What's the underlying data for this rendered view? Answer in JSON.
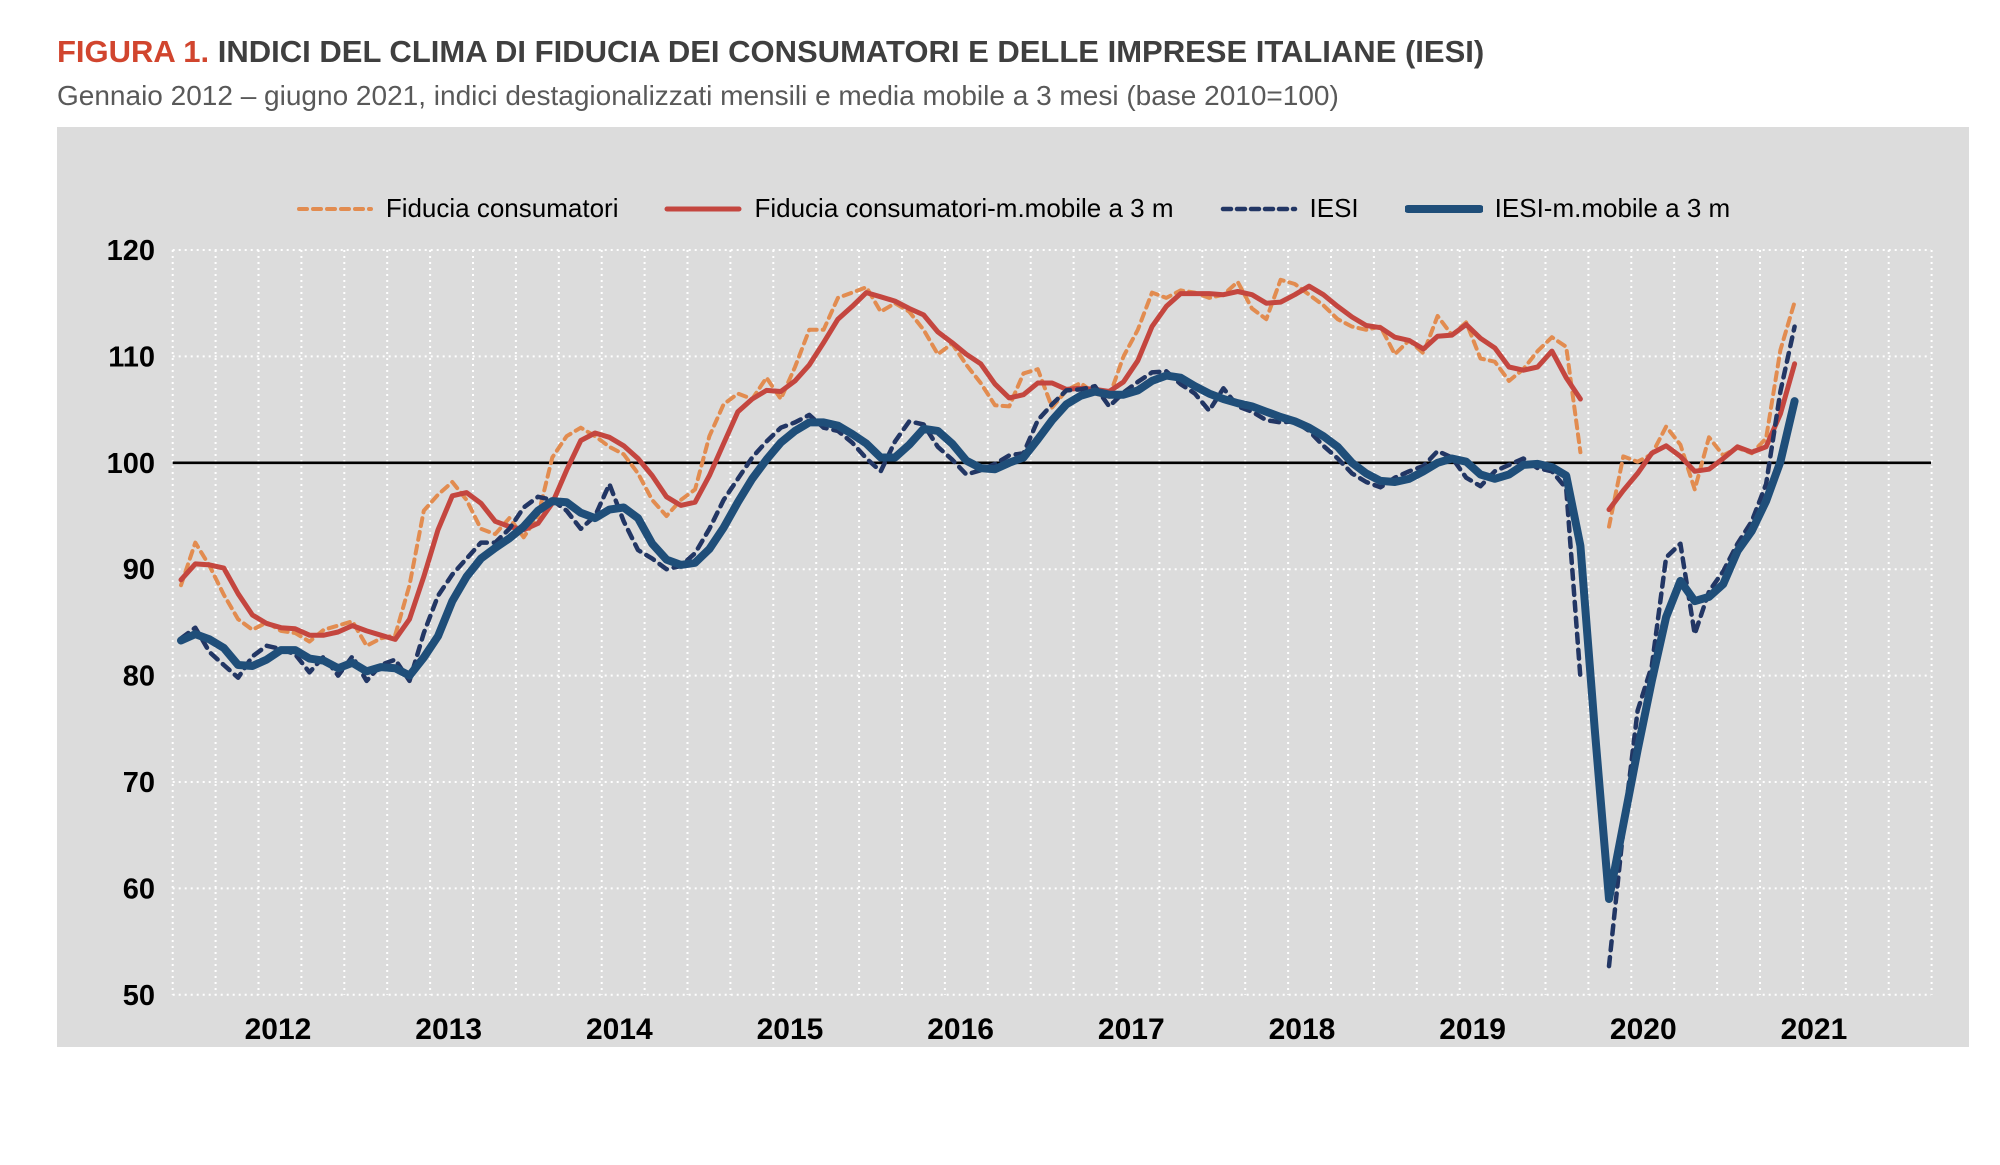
{
  "header": {
    "figure_label": "FIGURA 1.",
    "title": "INDICI DEL CLIMA DI FIDUCIA DEI CONSUMATORI E DELLE IMPRESE ITALIANE (IESI)",
    "subtitle": "Gennaio 2012 – giugno 2021, indici destagionalizzati mensili e media mobile a 3 mesi (base 2010=100)",
    "figure_label_color": "#d1452e",
    "title_color": "#3f3f3f",
    "subtitle_color": "#595959"
  },
  "legend": {
    "items": [
      {
        "label": "Fiducia consumatori",
        "style": "dashed",
        "color": "#e28c50",
        "weight": 4
      },
      {
        "label": "Fiducia consumatori-m.mobile a 3 m",
        "style": "solid",
        "color": "#c4463f",
        "weight": 5
      },
      {
        "label": "IESI",
        "style": "dashed",
        "color": "#223664",
        "weight": 4.5
      },
      {
        "label": "IESI-m.mobile a 3 m",
        "style": "solid",
        "color": "#1f4e79",
        "weight": 8
      }
    ]
  },
  "chart_data": {
    "type": "line",
    "title": "Indici del clima di fiducia dei consumatori e delle imprese italiane (IESI)",
    "x_unit": "month",
    "x_start": "2012-01",
    "x_end": "2021-06",
    "year_labels": [
      "2012",
      "2013",
      "2014",
      "2015",
      "2016",
      "2017",
      "2018",
      "2019",
      "2020",
      "2021"
    ],
    "ylim": [
      50,
      120
    ],
    "yticks": [
      120,
      110,
      100,
      90,
      80,
      70,
      60,
      50
    ],
    "baseline": 100,
    "plot_bg": "#dcdcdc",
    "grid_color": "#ffffff",
    "baseline_color": "#000000",
    "grid": true,
    "legend_position": "top",
    "series": [
      {
        "name": "Fiducia consumatori",
        "color": "#e28c50",
        "dash": "8 6",
        "width": 4,
        "values": [
          88.5,
          92.5,
          90.3,
          87.6,
          85.3,
          84.3,
          85.0,
          84.2,
          84.0,
          83.2,
          84.3,
          84.7,
          85.1,
          82.8,
          83.5,
          83.8,
          88.5,
          95.5,
          97.0,
          98.2,
          96.5,
          93.8,
          93.3,
          94.8,
          93.0,
          95.0,
          100.5,
          102.5,
          103.3,
          102.5,
          101.5,
          100.8,
          99.0,
          96.5,
          95.0,
          96.5,
          97.5,
          102.5,
          105.5,
          106.5,
          106.0,
          108.0,
          106.0,
          109.0,
          112.5,
          112.5,
          115.5,
          116.0,
          116.5,
          114.2,
          115.0,
          114.2,
          112.5,
          110.2,
          111.2,
          109.2,
          107.5,
          105.4,
          105.3,
          108.4,
          108.8,
          105.2,
          106.8,
          107.5,
          106.5,
          106.2,
          110.0,
          112.5,
          116.0,
          115.5,
          116.2,
          116.0,
          115.5,
          115.8,
          117.0,
          114.5,
          113.5,
          117.2,
          116.8,
          115.8,
          114.8,
          113.5,
          112.8,
          112.5,
          112.8,
          110.2,
          111.5,
          110.3,
          113.8,
          112.0,
          113.2,
          109.8,
          109.5,
          107.7,
          108.8,
          110.5,
          111.8,
          110.9,
          101.0,
          null,
          94.0,
          100.6,
          100.1,
          100.8,
          103.4,
          101.7,
          97.5,
          102.4,
          100.7,
          101.4,
          100.9,
          102.3,
          110.6,
          115.1
        ]
      },
      {
        "name": "Fiducia consumatori-m.mobile a 3 m",
        "color": "#c4463f",
        "dash": null,
        "width": 5,
        "values": [
          89.0,
          90.5,
          90.4,
          90.1,
          87.7,
          85.7,
          84.9,
          84.5,
          84.4,
          83.8,
          83.8,
          84.1,
          84.7,
          84.2,
          83.8,
          83.4,
          85.3,
          89.3,
          93.7,
          96.9,
          97.2,
          96.2,
          94.5,
          94.0,
          93.7,
          94.3,
          96.2,
          99.3,
          102.1,
          102.8,
          102.4,
          101.6,
          100.4,
          98.8,
          96.8,
          96.0,
          96.3,
          98.8,
          101.8,
          104.8,
          106.0,
          106.8,
          106.7,
          107.7,
          109.2,
          111.3,
          113.5,
          114.7,
          116.0,
          115.6,
          115.2,
          114.5,
          113.9,
          112.3,
          111.3,
          110.2,
          109.3,
          107.4,
          106.1,
          106.4,
          107.5,
          107.5,
          106.9,
          107.0,
          106.9,
          106.7,
          107.6,
          109.6,
          112.8,
          114.7,
          115.9,
          115.9,
          115.9,
          115.8,
          116.1,
          115.8,
          115.0,
          115.1,
          115.8,
          116.6,
          115.8,
          114.7,
          113.7,
          112.9,
          112.7,
          111.8,
          111.5,
          110.7,
          111.9,
          112.0,
          113.0,
          111.7,
          110.8,
          109.0,
          108.7,
          109.0,
          110.5,
          108.0,
          106.0,
          null,
          95.6,
          97.4,
          99.0,
          100.9,
          101.6,
          100.6,
          99.2,
          99.4,
          100.4,
          101.5,
          101.0,
          101.5,
          104.6,
          109.3
        ]
      },
      {
        "name": "IESI",
        "color": "#223664",
        "dash": "9 7",
        "width": 4.5,
        "values": [
          83.5,
          84.5,
          82.2,
          81.0,
          79.8,
          81.8,
          82.8,
          82.5,
          82.0,
          80.3,
          81.8,
          80.0,
          81.8,
          79.5,
          81.0,
          81.5,
          79.5,
          84.0,
          87.5,
          89.5,
          91.0,
          92.5,
          92.5,
          93.8,
          95.8,
          96.8,
          96.5,
          95.5,
          93.8,
          95.0,
          98.0,
          94.5,
          91.8,
          91.0,
          90.0,
          90.3,
          91.5,
          93.8,
          96.5,
          98.5,
          100.5,
          102.0,
          103.3,
          103.8,
          104.5,
          103.3,
          103.0,
          101.9,
          100.4,
          99.2,
          102.0,
          103.9,
          103.6,
          101.5,
          100.3,
          98.9,
          99.3,
          99.9,
          100.7,
          100.9,
          104.0,
          105.5,
          106.8,
          106.9,
          107.2,
          105.3,
          106.6,
          107.6,
          108.5,
          108.6,
          107.4,
          106.5,
          104.9,
          107.0,
          105.3,
          104.8,
          104.0,
          103.8,
          103.9,
          103.0,
          101.6,
          100.4,
          99.0,
          98.2,
          97.7,
          98.6,
          99.2,
          99.7,
          101.1,
          100.5,
          98.6,
          97.8,
          99.2,
          99.8,
          100.4,
          99.5,
          99.2,
          97.6,
          79.8,
          null,
          52.7,
          65.5,
          76.7,
          80.9,
          91.1,
          92.4,
          83.9,
          87.9,
          89.8,
          92.4,
          94.5,
          98.0,
          106.7,
          112.8
        ]
      },
      {
        "name": "IESI-m.mobile a 3 m",
        "color": "#1f4e79",
        "dash": null,
        "width": 8,
        "values": [
          83.3,
          83.9,
          83.4,
          82.6,
          81.0,
          80.9,
          81.5,
          82.4,
          82.4,
          81.6,
          81.4,
          80.7,
          81.2,
          80.4,
          80.8,
          80.7,
          80.0,
          81.7,
          83.7,
          87.0,
          89.3,
          91.0,
          92.0,
          92.9,
          94.0,
          95.5,
          96.4,
          96.3,
          95.3,
          94.8,
          95.6,
          95.8,
          94.8,
          92.4,
          90.9,
          90.4,
          90.6,
          91.9,
          93.9,
          96.3,
          98.5,
          100.3,
          101.9,
          103.0,
          103.8,
          103.8,
          103.5,
          102.7,
          101.8,
          100.5,
          100.5,
          101.7,
          103.2,
          103.0,
          101.8,
          100.2,
          99.5,
          99.4,
          100.0,
          100.5,
          102.2,
          104.0,
          105.5,
          106.3,
          106.7,
          106.4,
          106.4,
          106.8,
          107.7,
          108.2,
          108.0,
          107.2,
          106.5,
          106.0,
          105.6,
          105.3,
          104.8,
          104.3,
          103.9,
          103.3,
          102.5,
          101.5,
          100.0,
          99.0,
          98.3,
          98.2,
          98.5,
          99.2,
          100.0,
          100.4,
          100.1,
          98.9,
          98.5,
          98.9,
          99.8,
          99.9,
          99.6,
          98.8,
          92.2,
          75.0,
          59.0,
          66.0,
          73.0,
          79.5,
          85.5,
          88.9,
          87.0,
          87.4,
          88.6,
          91.7,
          93.6,
          96.4,
          100.1,
          105.8
        ]
      }
    ]
  }
}
